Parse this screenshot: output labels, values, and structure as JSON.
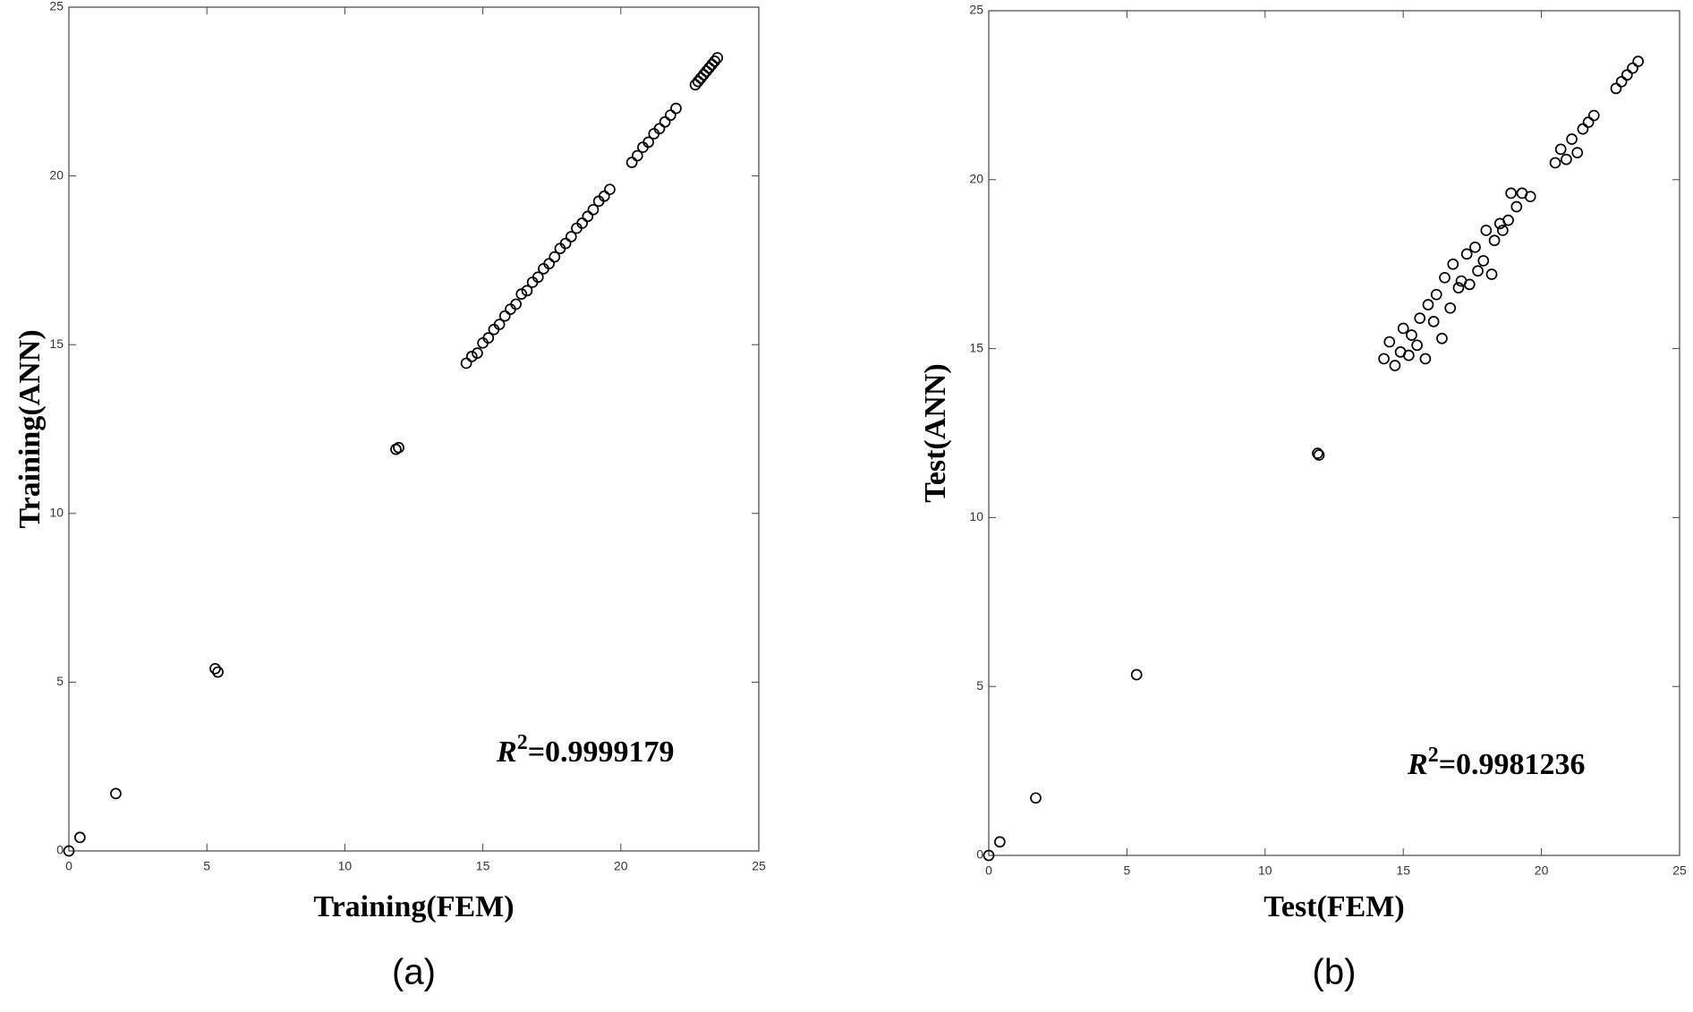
{
  "chart_data": [
    {
      "type": "scatter",
      "x_label": "Training(FEM)",
      "y_label": "Training(ANN)",
      "caption": "(a)",
      "annotation": {
        "symbol": "R",
        "exponent": "2",
        "text": "=0.9999179"
      },
      "color": "#000000",
      "marker": "open-circle",
      "x": [
        0,
        0.4,
        1.7,
        5.3,
        5.4,
        11.85,
        11.95,
        14.4,
        14.6,
        14.8,
        15.0,
        15.2,
        15.4,
        15.6,
        15.8,
        16.0,
        16.2,
        16.4,
        16.6,
        16.8,
        17.0,
        17.2,
        17.4,
        17.6,
        17.8,
        18.0,
        18.2,
        18.4,
        18.6,
        18.8,
        19.0,
        19.2,
        19.4,
        19.6,
        20.4,
        20.6,
        20.8,
        21.0,
        21.2,
        21.4,
        21.6,
        21.8,
        22.0,
        22.7,
        22.8,
        22.9,
        23.0,
        23.1,
        23.2,
        23.3,
        23.4,
        23.5
      ],
      "values": [
        0,
        0.4,
        1.7,
        5.4,
        5.3,
        11.9,
        11.95,
        14.45,
        14.65,
        14.75,
        15.05,
        15.2,
        15.45,
        15.6,
        15.85,
        16.05,
        16.2,
        16.5,
        16.6,
        16.85,
        17.0,
        17.25,
        17.4,
        17.6,
        17.85,
        18.0,
        18.2,
        18.45,
        18.6,
        18.8,
        19.0,
        19.25,
        19.4,
        19.6,
        20.4,
        20.6,
        20.85,
        21.0,
        21.25,
        21.4,
        21.6,
        21.8,
        22.0,
        22.7,
        22.8,
        22.9,
        23.0,
        23.1,
        23.2,
        23.3,
        23.4,
        23.5
      ],
      "xlim": [
        0,
        25
      ],
      "ylim": [
        0,
        25
      ],
      "xticks": [
        0,
        5,
        10,
        15,
        20,
        25
      ],
      "yticks": [
        0,
        5,
        10,
        15,
        20,
        25
      ],
      "grid": false
    },
    {
      "type": "scatter",
      "x_label": "Test(FEM)",
      "y_label": "Test(ANN)",
      "caption": "(b)",
      "annotation": {
        "symbol": "R",
        "exponent": "2",
        "text": "=0.9981236"
      },
      "color": "#000000",
      "marker": "open-circle",
      "x": [
        0,
        0.4,
        1.7,
        5.35,
        11.9,
        11.95,
        14.3,
        14.5,
        14.7,
        14.9,
        15.0,
        15.2,
        15.3,
        15.5,
        15.6,
        15.8,
        15.9,
        16.1,
        16.2,
        16.4,
        16.5,
        16.7,
        16.8,
        17.0,
        17.1,
        17.3,
        17.4,
        17.6,
        17.7,
        17.9,
        18.0,
        18.2,
        18.3,
        18.5,
        18.6,
        18.8,
        18.9,
        19.1,
        19.3,
        19.6,
        20.5,
        20.7,
        20.9,
        21.1,
        21.3,
        21.5,
        21.7,
        21.9,
        22.7,
        22.9,
        23.1,
        23.3,
        23.5
      ],
      "values": [
        0,
        0.4,
        1.7,
        5.35,
        11.9,
        11.85,
        14.7,
        15.2,
        14.5,
        14.9,
        15.6,
        14.8,
        15.4,
        15.1,
        15.9,
        14.7,
        16.3,
        15.8,
        16.6,
        15.3,
        17.1,
        16.2,
        17.5,
        16.8,
        17.0,
        17.8,
        16.9,
        18.0,
        17.3,
        17.6,
        18.5,
        17.2,
        18.2,
        18.7,
        18.5,
        18.8,
        19.6,
        19.2,
        19.6,
        19.5,
        20.5,
        20.9,
        20.6,
        21.2,
        20.8,
        21.5,
        21.7,
        21.9,
        22.7,
        22.9,
        23.1,
        23.3,
        23.5
      ],
      "xlim": [
        0,
        25
      ],
      "ylim": [
        0,
        25
      ],
      "xticks": [
        0,
        5,
        10,
        15,
        20,
        25
      ],
      "yticks": [
        0,
        5,
        10,
        15,
        20,
        25
      ],
      "grid": false
    }
  ]
}
